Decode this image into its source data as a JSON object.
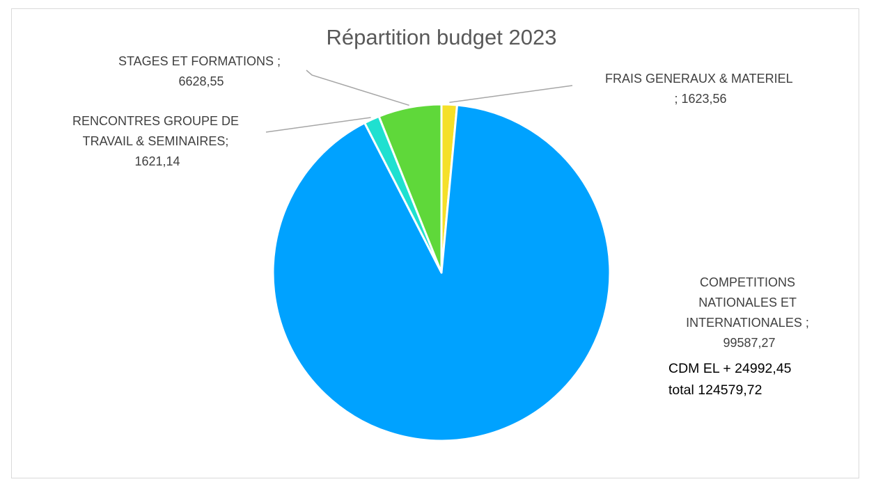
{
  "chart_data": {
    "type": "pie",
    "title": "Répartition budget 2023",
    "categories": [
      "FRAIS GENERAUX & MATERIEL",
      "COMPETITIONS NATIONALES ET INTERNATIONALES",
      "RENCONTRES GROUPE DE TRAVAIL & SEMINAIRES",
      "STAGES ET FORMATIONS"
    ],
    "values": [
      1623.56,
      99587.27,
      1621.14,
      6628.55
    ],
    "value_labels": [
      "1623,56",
      "99587,27",
      "1621,14",
      "6628,55"
    ],
    "colors": [
      "#f5e029",
      "#00a2ff",
      "#1fe0d0",
      "#5fd83a"
    ],
    "data_labels": {
      "frais": [
        "FRAIS GENERAUX & MATERIEL",
        "; 1623,56"
      ],
      "competitions": [
        "COMPETITIONS",
        "NATIONALES ET",
        "INTERNATIONALES ;",
        "99587,27"
      ],
      "rencontres": [
        "RENCONTRES GROUPE DE",
        "TRAVAIL & SEMINAIRES;",
        "1621,14"
      ],
      "stages": [
        "STAGES ET FORMATIONS ;",
        "6628,55"
      ]
    },
    "annotation": [
      "CDM EL  + 24992,45",
      "total 124579,72"
    ],
    "legend": "none",
    "start_angle": "12 o'clock, clockwise"
  }
}
